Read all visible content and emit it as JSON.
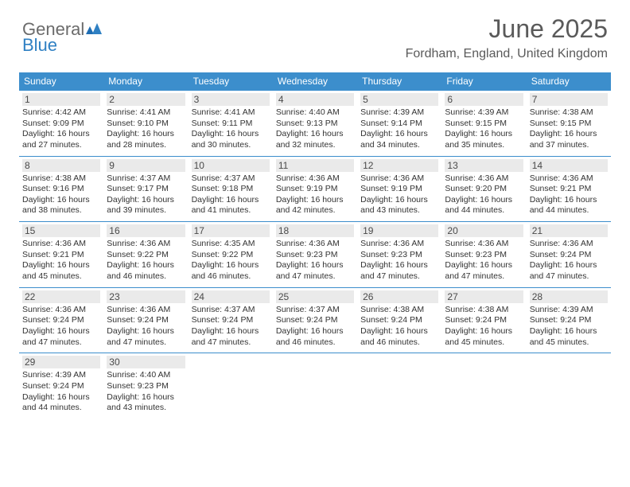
{
  "brand": {
    "word1": "General",
    "word2": "Blue"
  },
  "title": "June 2025",
  "location": "Fordham, England, United Kingdom",
  "colors": {
    "header_bg": "#3c8ecc",
    "header_text": "#ffffff",
    "daynum_bg": "#eaeaea",
    "text": "#333333",
    "title_color": "#5a5a5a",
    "logo_gray": "#6b6b6b",
    "logo_blue": "#2f80c3"
  },
  "day_headers": [
    "Sunday",
    "Monday",
    "Tuesday",
    "Wednesday",
    "Thursday",
    "Friday",
    "Saturday"
  ],
  "weeks": [
    [
      {
        "n": "1",
        "sr": "Sunrise: 4:42 AM",
        "ss": "Sunset: 9:09 PM",
        "dl": "Daylight: 16 hours and 27 minutes."
      },
      {
        "n": "2",
        "sr": "Sunrise: 4:41 AM",
        "ss": "Sunset: 9:10 PM",
        "dl": "Daylight: 16 hours and 28 minutes."
      },
      {
        "n": "3",
        "sr": "Sunrise: 4:41 AM",
        "ss": "Sunset: 9:11 PM",
        "dl": "Daylight: 16 hours and 30 minutes."
      },
      {
        "n": "4",
        "sr": "Sunrise: 4:40 AM",
        "ss": "Sunset: 9:13 PM",
        "dl": "Daylight: 16 hours and 32 minutes."
      },
      {
        "n": "5",
        "sr": "Sunrise: 4:39 AM",
        "ss": "Sunset: 9:14 PM",
        "dl": "Daylight: 16 hours and 34 minutes."
      },
      {
        "n": "6",
        "sr": "Sunrise: 4:39 AM",
        "ss": "Sunset: 9:15 PM",
        "dl": "Daylight: 16 hours and 35 minutes."
      },
      {
        "n": "7",
        "sr": "Sunrise: 4:38 AM",
        "ss": "Sunset: 9:15 PM",
        "dl": "Daylight: 16 hours and 37 minutes."
      }
    ],
    [
      {
        "n": "8",
        "sr": "Sunrise: 4:38 AM",
        "ss": "Sunset: 9:16 PM",
        "dl": "Daylight: 16 hours and 38 minutes."
      },
      {
        "n": "9",
        "sr": "Sunrise: 4:37 AM",
        "ss": "Sunset: 9:17 PM",
        "dl": "Daylight: 16 hours and 39 minutes."
      },
      {
        "n": "10",
        "sr": "Sunrise: 4:37 AM",
        "ss": "Sunset: 9:18 PM",
        "dl": "Daylight: 16 hours and 41 minutes."
      },
      {
        "n": "11",
        "sr": "Sunrise: 4:36 AM",
        "ss": "Sunset: 9:19 PM",
        "dl": "Daylight: 16 hours and 42 minutes."
      },
      {
        "n": "12",
        "sr": "Sunrise: 4:36 AM",
        "ss": "Sunset: 9:19 PM",
        "dl": "Daylight: 16 hours and 43 minutes."
      },
      {
        "n": "13",
        "sr": "Sunrise: 4:36 AM",
        "ss": "Sunset: 9:20 PM",
        "dl": "Daylight: 16 hours and 44 minutes."
      },
      {
        "n": "14",
        "sr": "Sunrise: 4:36 AM",
        "ss": "Sunset: 9:21 PM",
        "dl": "Daylight: 16 hours and 44 minutes."
      }
    ],
    [
      {
        "n": "15",
        "sr": "Sunrise: 4:36 AM",
        "ss": "Sunset: 9:21 PM",
        "dl": "Daylight: 16 hours and 45 minutes."
      },
      {
        "n": "16",
        "sr": "Sunrise: 4:36 AM",
        "ss": "Sunset: 9:22 PM",
        "dl": "Daylight: 16 hours and 46 minutes."
      },
      {
        "n": "17",
        "sr": "Sunrise: 4:35 AM",
        "ss": "Sunset: 9:22 PM",
        "dl": "Daylight: 16 hours and 46 minutes."
      },
      {
        "n": "18",
        "sr": "Sunrise: 4:36 AM",
        "ss": "Sunset: 9:23 PM",
        "dl": "Daylight: 16 hours and 47 minutes."
      },
      {
        "n": "19",
        "sr": "Sunrise: 4:36 AM",
        "ss": "Sunset: 9:23 PM",
        "dl": "Daylight: 16 hours and 47 minutes."
      },
      {
        "n": "20",
        "sr": "Sunrise: 4:36 AM",
        "ss": "Sunset: 9:23 PM",
        "dl": "Daylight: 16 hours and 47 minutes."
      },
      {
        "n": "21",
        "sr": "Sunrise: 4:36 AM",
        "ss": "Sunset: 9:24 PM",
        "dl": "Daylight: 16 hours and 47 minutes."
      }
    ],
    [
      {
        "n": "22",
        "sr": "Sunrise: 4:36 AM",
        "ss": "Sunset: 9:24 PM",
        "dl": "Daylight: 16 hours and 47 minutes."
      },
      {
        "n": "23",
        "sr": "Sunrise: 4:36 AM",
        "ss": "Sunset: 9:24 PM",
        "dl": "Daylight: 16 hours and 47 minutes."
      },
      {
        "n": "24",
        "sr": "Sunrise: 4:37 AM",
        "ss": "Sunset: 9:24 PM",
        "dl": "Daylight: 16 hours and 47 minutes."
      },
      {
        "n": "25",
        "sr": "Sunrise: 4:37 AM",
        "ss": "Sunset: 9:24 PM",
        "dl": "Daylight: 16 hours and 46 minutes."
      },
      {
        "n": "26",
        "sr": "Sunrise: 4:38 AM",
        "ss": "Sunset: 9:24 PM",
        "dl": "Daylight: 16 hours and 46 minutes."
      },
      {
        "n": "27",
        "sr": "Sunrise: 4:38 AM",
        "ss": "Sunset: 9:24 PM",
        "dl": "Daylight: 16 hours and 45 minutes."
      },
      {
        "n": "28",
        "sr": "Sunrise: 4:39 AM",
        "ss": "Sunset: 9:24 PM",
        "dl": "Daylight: 16 hours and 45 minutes."
      }
    ],
    [
      {
        "n": "29",
        "sr": "Sunrise: 4:39 AM",
        "ss": "Sunset: 9:24 PM",
        "dl": "Daylight: 16 hours and 44 minutes."
      },
      {
        "n": "30",
        "sr": "Sunrise: 4:40 AM",
        "ss": "Sunset: 9:23 PM",
        "dl": "Daylight: 16 hours and 43 minutes."
      },
      null,
      null,
      null,
      null,
      null
    ]
  ]
}
